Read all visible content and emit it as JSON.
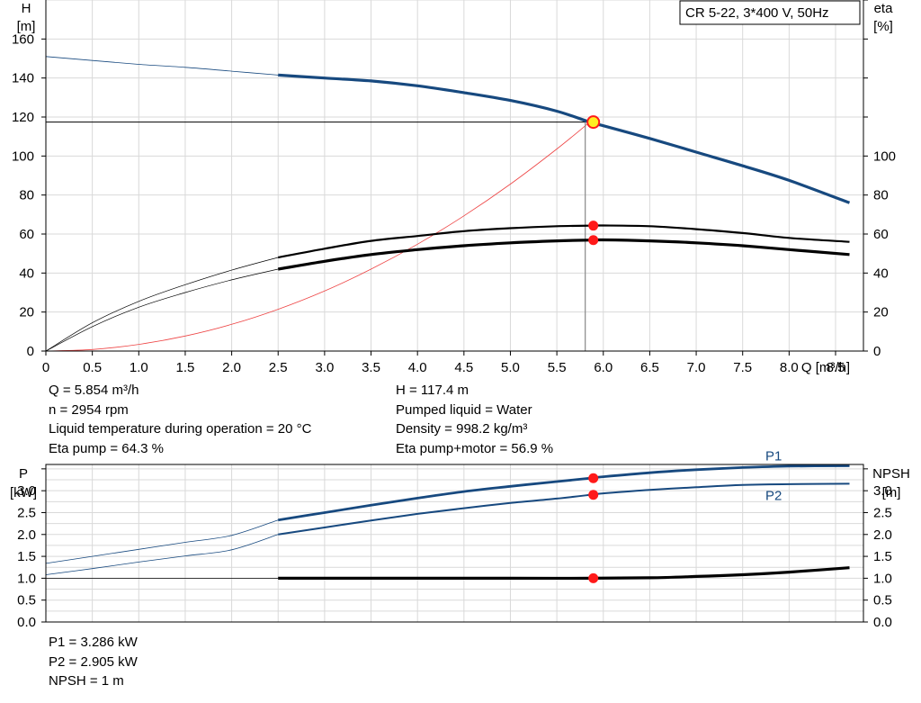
{
  "title": "CR 5-22, 3*400 V, 50Hz",
  "duty_point": {
    "q": "Q = 5.854 m³/h",
    "n": "n = 2954 rpm",
    "liquid_temperature": "Liquid temperature during operation = 20 °C",
    "eta_pump": "Eta pump = 64.3 %",
    "h": "H = 117.4 m",
    "pumped_liquid": "Pumped liquid = Water",
    "density": "Density = 998.2 kg/m³",
    "eta_pump_motor": "Eta pump+motor = 56.9 %",
    "p1": "P1 = 3.286 kW",
    "p2": "P2 = 2.905 kW",
    "npsh": "NPSH = 1 m"
  },
  "colors": {
    "head": "#17497f",
    "eta": "#000000",
    "system": "#ee4444",
    "power": "#17497f",
    "npsh": "#000000",
    "marker": "#ff1a1a",
    "duty_marker": "#ffee22",
    "grid": "#d9d9d9"
  },
  "chart_data": [
    {
      "type": "line",
      "xlabel": "Q [m³/h]",
      "ylabel_left": [
        "H",
        "[m]"
      ],
      "ylabel_right": [
        "eta",
        "[%]"
      ],
      "xlim": [
        0,
        8.8
      ],
      "x_ticks": [
        "0",
        "0.5",
        "1.0",
        "1.5",
        "2.0",
        "2.5",
        "3.0",
        "3.5",
        "4.0",
        "4.5",
        "5.0",
        "5.5",
        "6.0",
        "6.5",
        "7.0",
        "7.5",
        "8.0",
        "8.5"
      ],
      "ylim_left": [
        0,
        180
      ],
      "y_ticks_left": [
        "0",
        "20",
        "40",
        "60",
        "80",
        "100",
        "120",
        "140",
        "160"
      ],
      "y_ticks_right": [
        "0",
        "20",
        "40",
        "60",
        "80",
        "100"
      ],
      "grid": true,
      "series": [
        {
          "role": "head",
          "points": [
            [
              0,
              151
            ],
            [
              0.5,
              149
            ],
            [
              1.0,
              147
            ],
            [
              1.5,
              145.5
            ],
            [
              2.0,
              143.5
            ],
            [
              2.5,
              141.5
            ],
            [
              3.0,
              140
            ],
            [
              3.5,
              138.5
            ],
            [
              4.0,
              136
            ],
            [
              4.5,
              132.5
            ],
            [
              5.0,
              128.5
            ],
            [
              5.5,
              123
            ],
            [
              5.854,
              117.4
            ],
            [
              6.0,
              115.5
            ],
            [
              6.5,
              109
            ],
            [
              7.0,
              102
            ],
            [
              7.5,
              95
            ],
            [
              8.0,
              87.5
            ],
            [
              8.65,
              76
            ]
          ]
        },
        {
          "role": "eta_pump",
          "points": [
            [
              0,
              0
            ],
            [
              0.5,
              14.5
            ],
            [
              1.0,
              25.5
            ],
            [
              1.5,
              34
            ],
            [
              2.0,
              41.5
            ],
            [
              2.5,
              48
            ],
            [
              3.0,
              52.5
            ],
            [
              3.5,
              56.5
            ],
            [
              4.0,
              59
            ],
            [
              4.5,
              61.5
            ],
            [
              5.0,
              63
            ],
            [
              5.5,
              64
            ],
            [
              5.854,
              64.3
            ],
            [
              6.0,
              64.4
            ],
            [
              6.5,
              64
            ],
            [
              7.0,
              62.5
            ],
            [
              7.5,
              60.5
            ],
            [
              8.0,
              58
            ],
            [
              8.65,
              56
            ]
          ]
        },
        {
          "role": "eta_pump_motor",
          "points": [
            [
              0,
              0
            ],
            [
              0.5,
              12.5
            ],
            [
              1.0,
              22.5
            ],
            [
              1.5,
              30
            ],
            [
              2.0,
              36.5
            ],
            [
              2.5,
              42
            ],
            [
              3.0,
              46
            ],
            [
              3.5,
              49.5
            ],
            [
              4.0,
              52
            ],
            [
              4.5,
              54
            ],
            [
              5.0,
              55.5
            ],
            [
              5.5,
              56.5
            ],
            [
              5.854,
              56.9
            ],
            [
              6.0,
              57
            ],
            [
              6.5,
              56.5
            ],
            [
              7.0,
              55.5
            ],
            [
              7.5,
              54
            ],
            [
              8.0,
              52
            ],
            [
              8.65,
              49.5
            ]
          ]
        },
        {
          "role": "system_curve",
          "points": [
            [
              0,
              0
            ],
            [
              0.5,
              0.8
            ],
            [
              1.0,
              3.4
            ],
            [
              1.5,
              7.7
            ],
            [
              2.0,
              13.7
            ],
            [
              2.5,
              21.4
            ],
            [
              3.0,
              30.8
            ],
            [
              3.5,
              42
            ],
            [
              4.0,
              54.8
            ],
            [
              4.5,
              69.3
            ],
            [
              5.0,
              85.6
            ],
            [
              5.5,
              103.6
            ],
            [
              5.854,
              117.4
            ]
          ]
        }
      ],
      "duty_point": {
        "q": 5.854,
        "h": 117.4,
        "eta_pump": 64.3,
        "eta_pump_motor": 56.9
      }
    },
    {
      "type": "line",
      "ylabel_left": [
        "P",
        "[kW]"
      ],
      "ylabel_right": [
        "NPSH",
        "[m]"
      ],
      "xlim": [
        0,
        8.8
      ],
      "ylim_left": [
        0,
        3.6
      ],
      "y_ticks_left": [
        "0.0",
        "0.5",
        "1.0",
        "1.5",
        "2.0",
        "2.5",
        "3.0"
      ],
      "y_ticks_right": [
        "0.0",
        "0.5",
        "1.0",
        "1.5",
        "2.0",
        "2.5",
        "3.0"
      ],
      "grid": true,
      "series": [
        {
          "name": "P1",
          "points": [
            [
              0,
              1.34
            ],
            [
              0.5,
              1.5
            ],
            [
              1.0,
              1.66
            ],
            [
              1.5,
              1.82
            ],
            [
              2.0,
              1.98
            ],
            [
              2.5,
              2.33
            ],
            [
              3.0,
              2.5
            ],
            [
              3.5,
              2.67
            ],
            [
              4.0,
              2.83
            ],
            [
              4.5,
              2.98
            ],
            [
              5.0,
              3.1
            ],
            [
              5.5,
              3.21
            ],
            [
              5.854,
              3.286
            ],
            [
              6.0,
              3.32
            ],
            [
              6.5,
              3.41
            ],
            [
              7.0,
              3.48
            ],
            [
              7.5,
              3.53
            ],
            [
              8.0,
              3.56
            ],
            [
              8.65,
              3.57
            ]
          ]
        },
        {
          "name": "P2",
          "points": [
            [
              0,
              1.08
            ],
            [
              0.5,
              1.22
            ],
            [
              1.0,
              1.37
            ],
            [
              1.5,
              1.51
            ],
            [
              2.0,
              1.65
            ],
            [
              2.5,
              2.0
            ],
            [
              3.0,
              2.16
            ],
            [
              3.5,
              2.32
            ],
            [
              4.0,
              2.47
            ],
            [
              4.5,
              2.6
            ],
            [
              5.0,
              2.72
            ],
            [
              5.5,
              2.82
            ],
            [
              5.854,
              2.905
            ],
            [
              6.0,
              2.94
            ],
            [
              6.5,
              3.02
            ],
            [
              7.0,
              3.08
            ],
            [
              7.5,
              3.13
            ],
            [
              8.0,
              3.15
            ],
            [
              8.65,
              3.16
            ]
          ]
        },
        {
          "role": "npsh",
          "points": [
            [
              0,
              1.0
            ],
            [
              2.5,
              1.0
            ],
            [
              3.5,
              1.0
            ],
            [
              4.5,
              1.0
            ],
            [
              5.0,
              1.0
            ],
            [
              5.854,
              1.0
            ],
            [
              6.5,
              1.01
            ],
            [
              7.0,
              1.04
            ],
            [
              7.5,
              1.08
            ],
            [
              8.0,
              1.14
            ],
            [
              8.65,
              1.24
            ]
          ]
        }
      ],
      "duty_point": {
        "p1": 3.286,
        "p2": 2.905,
        "npsh": 1.0
      }
    }
  ]
}
